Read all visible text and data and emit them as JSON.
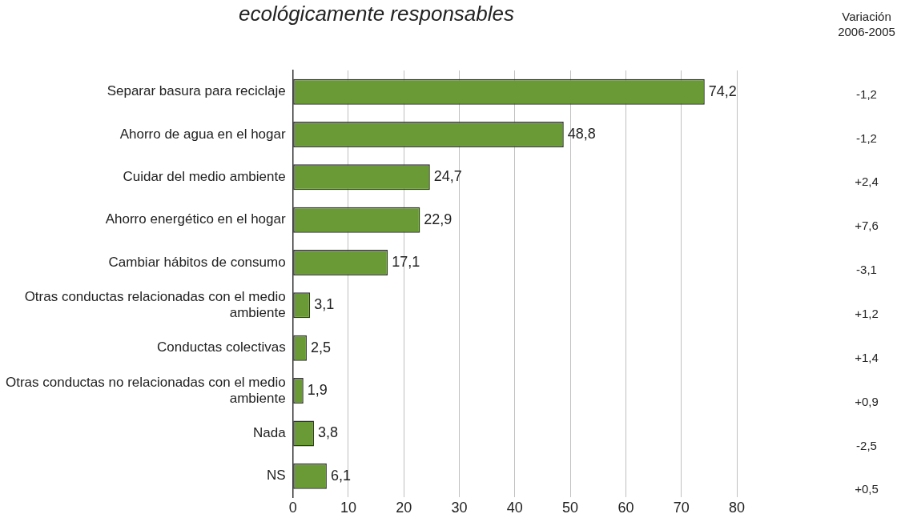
{
  "chart_data": {
    "type": "bar",
    "orientation": "horizontal",
    "title": "ecológicamente responsables",
    "categories": [
      "Separar basura para reciclaje",
      "Ahorro de agua en el hogar",
      "Cuidar del medio ambiente",
      "Ahorro energético en el hogar",
      "Cambiar hábitos de consumo",
      "Otras conductas relacionadas con el medio ambiente",
      "Conductas colectivas",
      "Otras conductas no relacionadas con el medio ambiente",
      "Nada",
      "NS"
    ],
    "values": [
      74.2,
      48.8,
      24.7,
      22.9,
      17.1,
      3.1,
      2.5,
      1.9,
      3.8,
      6.1
    ],
    "value_labels": [
      "74,2",
      "48,8",
      "24,7",
      "22,9",
      "17,1",
      "3,1",
      "2,5",
      "1,9",
      "3,8",
      "6,1"
    ],
    "color": "#6a9a36",
    "xlim": [
      0,
      80
    ],
    "xticks": [
      0,
      10,
      20,
      30,
      40,
      50,
      60,
      70,
      80
    ],
    "grid": "x",
    "annotations": [
      "Variación 2006-2005",
      "-1,2",
      "-1,2",
      "+2,4",
      "+7,6",
      "-3,1",
      "+1,2",
      "+1,4",
      "+0,9",
      "-2,5",
      "+0,5"
    ]
  }
}
